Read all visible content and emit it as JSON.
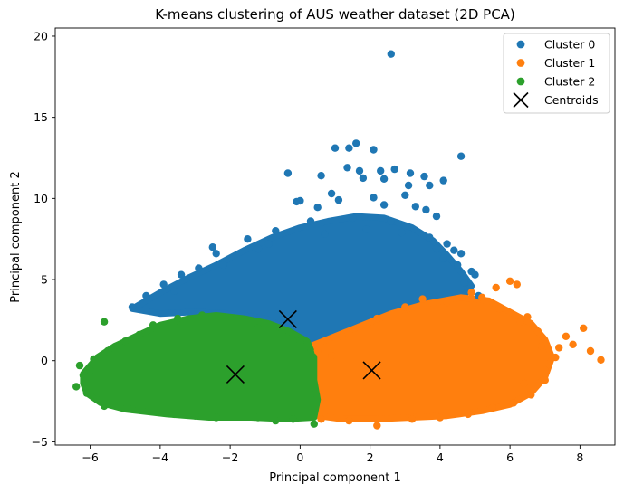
{
  "chart_data": {
    "type": "scatter",
    "title": "K-means clustering of AUS weather dataset (2D PCA)",
    "xlabel": "Principal component 1",
    "ylabel": "Principal component 2",
    "xlim": [
      -7.0,
      9.0
    ],
    "ylim": [
      -5.2,
      20.5
    ],
    "xticks": [
      -6,
      -4,
      -2,
      0,
      2,
      4,
      6,
      8
    ],
    "yticks": [
      -5,
      0,
      5,
      10,
      15,
      20
    ],
    "grid": false,
    "legend_position": "top-right",
    "series": [
      {
        "name": "Cluster 0",
        "color": "#1f77b4",
        "points": [
          [
            2.6,
            18.9
          ],
          [
            4.6,
            12.6
          ],
          [
            1.0,
            13.1
          ],
          [
            1.6,
            13.4
          ],
          [
            1.4,
            13.1
          ],
          [
            2.1,
            13.0
          ],
          [
            -0.35,
            11.55
          ],
          [
            0.6,
            11.4
          ],
          [
            1.35,
            11.9
          ],
          [
            1.7,
            11.7
          ],
          [
            2.3,
            11.7
          ],
          [
            2.7,
            11.8
          ],
          [
            3.15,
            11.55
          ],
          [
            3.55,
            11.35
          ],
          [
            4.1,
            11.1
          ],
          [
            2.4,
            11.2
          ],
          [
            3.1,
            10.8
          ],
          [
            3.7,
            10.8
          ],
          [
            1.8,
            11.25
          ],
          [
            -0.1,
            9.8
          ],
          [
            0.0,
            9.85
          ],
          [
            0.9,
            10.3
          ],
          [
            1.1,
            9.9
          ],
          [
            2.1,
            10.05
          ],
          [
            2.4,
            9.6
          ],
          [
            3.0,
            10.2
          ],
          [
            3.3,
            9.5
          ],
          [
            3.6,
            9.3
          ],
          [
            3.9,
            8.9
          ],
          [
            0.5,
            9.45
          ],
          [
            -2.4,
            6.6
          ],
          [
            -1.5,
            7.5
          ],
          [
            -0.7,
            8.0
          ],
          [
            4.2,
            7.2
          ],
          [
            4.4,
            6.8
          ],
          [
            4.6,
            6.6
          ],
          [
            4.9,
            5.5
          ],
          [
            5.0,
            5.3
          ],
          [
            -4.4,
            4.0
          ],
          [
            -3.9,
            4.7
          ],
          [
            -3.4,
            5.3
          ],
          [
            -2.9,
            5.7
          ],
          [
            -1.2,
            6.9
          ],
          [
            0.3,
            8.6
          ],
          [
            1.5,
            8.8
          ],
          [
            2.6,
            8.6
          ],
          [
            3.7,
            7.6
          ],
          [
            4.1,
            6.3
          ],
          [
            -4.8,
            3.3
          ],
          [
            -3.6,
            4.3
          ],
          [
            -2.2,
            5.9
          ],
          [
            -0.9,
            7.2
          ],
          [
            0.7,
            7.8
          ],
          [
            1.9,
            8.1
          ],
          [
            2.9,
            7.9
          ],
          [
            3.9,
            6.9
          ],
          [
            4.5,
            5.9
          ],
          [
            4.7,
            4.8
          ],
          [
            5.1,
            4.0
          ],
          [
            -2.5,
            7.0
          ]
        ]
      },
      {
        "name": "Cluster 1",
        "color": "#ff7f0e",
        "points": [
          [
            8.6,
            0.05
          ],
          [
            8.3,
            0.6
          ],
          [
            8.1,
            2.0
          ],
          [
            7.8,
            1.0
          ],
          [
            7.6,
            1.5
          ],
          [
            7.3,
            0.2
          ],
          [
            7.0,
            -0.6
          ],
          [
            6.9,
            0.9
          ],
          [
            6.5,
            2.7
          ],
          [
            6.3,
            2.4
          ],
          [
            6.0,
            4.9
          ],
          [
            6.2,
            4.7
          ],
          [
            5.6,
            4.5
          ],
          [
            5.2,
            3.9
          ],
          [
            4.9,
            4.2
          ],
          [
            7.0,
            -1.2
          ],
          [
            6.6,
            -2.1
          ],
          [
            6.1,
            -2.6
          ],
          [
            5.5,
            -2.9
          ],
          [
            4.8,
            -3.3
          ],
          [
            4.0,
            -3.5
          ],
          [
            3.2,
            -3.6
          ],
          [
            2.2,
            -4.0
          ],
          [
            1.4,
            -3.7
          ],
          [
            0.6,
            -3.6
          ],
          [
            0.9,
            0.3
          ],
          [
            0.5,
            0.6
          ],
          [
            3.5,
            3.8
          ],
          [
            4.2,
            3.6
          ],
          [
            6.8,
            1.8
          ],
          [
            7.4,
            0.8
          ],
          [
            6.4,
            -1.4
          ],
          [
            5.7,
            3.2
          ],
          [
            3.0,
            3.3
          ],
          [
            2.2,
            2.6
          ],
          [
            1.2,
            1.5
          ]
        ]
      },
      {
        "name": "Cluster 2",
        "color": "#2ca02c",
        "points": [
          [
            -6.3,
            -0.3
          ],
          [
            -6.4,
            -1.6
          ],
          [
            -6.0,
            -0.6
          ],
          [
            -5.8,
            -2.4
          ],
          [
            -5.6,
            2.4
          ],
          [
            -5.5,
            0.6
          ],
          [
            -5.0,
            1.2
          ],
          [
            -4.6,
            1.6
          ],
          [
            -4.2,
            2.2
          ],
          [
            -3.5,
            2.6
          ],
          [
            -2.8,
            2.8
          ],
          [
            -2.0,
            2.6
          ],
          [
            -1.2,
            2.0
          ],
          [
            -0.5,
            1.8
          ],
          [
            0.0,
            1.2
          ],
          [
            0.3,
            0.5
          ],
          [
            0.4,
            -3.9
          ],
          [
            -0.2,
            -3.6
          ],
          [
            -1.2,
            -3.5
          ],
          [
            -2.4,
            -3.5
          ],
          [
            -3.6,
            -3.3
          ],
          [
            -4.8,
            -3.0
          ],
          [
            -5.6,
            -2.8
          ],
          [
            -6.1,
            -2.0
          ],
          [
            -6.2,
            -0.9
          ],
          [
            -5.9,
            0.1
          ],
          [
            -0.7,
            -3.7
          ],
          [
            -3.0,
            -3.4
          ]
        ]
      }
    ],
    "clouds": [
      {
        "series": 0,
        "polygon": [
          [
            -4.8,
            3.2
          ],
          [
            -4.0,
            4.2
          ],
          [
            -3.2,
            5.1
          ],
          [
            -2.4,
            5.9
          ],
          [
            -1.6,
            6.8
          ],
          [
            -0.8,
            7.6
          ],
          [
            0.0,
            8.2
          ],
          [
            0.8,
            8.6
          ],
          [
            1.6,
            8.9
          ],
          [
            2.4,
            8.8
          ],
          [
            3.2,
            8.2
          ],
          [
            3.8,
            7.4
          ],
          [
            4.2,
            6.5
          ],
          [
            4.6,
            5.5
          ],
          [
            4.9,
            4.6
          ],
          [
            4.6,
            3.8
          ],
          [
            3.6,
            3.4
          ],
          [
            2.6,
            2.8
          ],
          [
            1.8,
            2.1
          ],
          [
            1.0,
            1.4
          ],
          [
            0.3,
            1.0
          ],
          [
            -0.3,
            1.9
          ],
          [
            -1.0,
            2.6
          ],
          [
            -2.0,
            2.9
          ],
          [
            -3.0,
            3.0
          ],
          [
            -4.0,
            2.9
          ]
        ]
      },
      {
        "series": 1,
        "polygon": [
          [
            0.3,
            0.9
          ],
          [
            1.0,
            1.5
          ],
          [
            1.8,
            2.2
          ],
          [
            2.6,
            2.9
          ],
          [
            3.6,
            3.5
          ],
          [
            4.6,
            3.9
          ],
          [
            5.4,
            3.7
          ],
          [
            6.0,
            3.0
          ],
          [
            6.6,
            2.3
          ],
          [
            7.0,
            1.3
          ],
          [
            7.2,
            0.2
          ],
          [
            7.0,
            -1.0
          ],
          [
            6.6,
            -2.0
          ],
          [
            6.0,
            -2.7
          ],
          [
            5.2,
            -3.1
          ],
          [
            4.2,
            -3.4
          ],
          [
            3.2,
            -3.5
          ],
          [
            2.2,
            -3.6
          ],
          [
            1.2,
            -3.6
          ],
          [
            0.5,
            -3.4
          ],
          [
            0.3,
            -1.5
          ],
          [
            0.2,
            0.0
          ]
        ]
      },
      {
        "series": 2,
        "polygon": [
          [
            -6.2,
            -0.8
          ],
          [
            -5.8,
            0.2
          ],
          [
            -5.3,
            0.9
          ],
          [
            -4.7,
            1.5
          ],
          [
            -4.0,
            2.2
          ],
          [
            -3.2,
            2.6
          ],
          [
            -2.4,
            2.8
          ],
          [
            -1.6,
            2.6
          ],
          [
            -0.9,
            2.3
          ],
          [
            -0.3,
            1.8
          ],
          [
            0.2,
            1.2
          ],
          [
            0.4,
            0.2
          ],
          [
            0.4,
            -1.2
          ],
          [
            0.5,
            -2.4
          ],
          [
            0.4,
            -3.5
          ],
          [
            -0.4,
            -3.6
          ],
          [
            -1.4,
            -3.5
          ],
          [
            -2.6,
            -3.5
          ],
          [
            -3.8,
            -3.3
          ],
          [
            -5.0,
            -3.0
          ],
          [
            -5.7,
            -2.6
          ],
          [
            -6.1,
            -2.0
          ],
          [
            -6.2,
            -1.4
          ]
        ]
      }
    ],
    "centroids": {
      "name": "Centroids",
      "color": "#000000",
      "points": [
        [
          -0.35,
          2.55
        ],
        [
          2.05,
          -0.6
        ],
        [
          -1.85,
          -0.85
        ]
      ]
    }
  }
}
